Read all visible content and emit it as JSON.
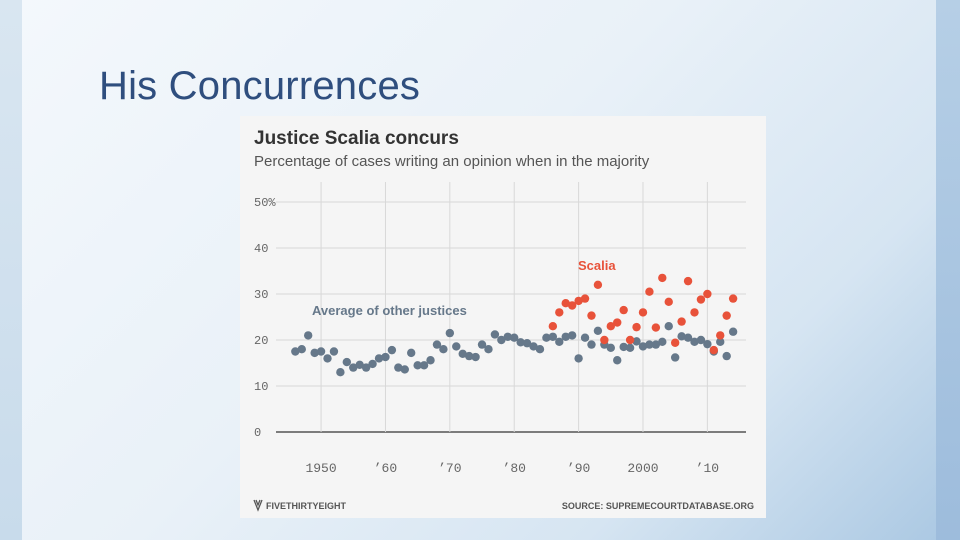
{
  "slide": {
    "title": "His Concurrences"
  },
  "chart_data": {
    "type": "scatter",
    "title": "Justice Scalia concurs",
    "subtitle": "Percentage of cases writing an opinion when in the majority",
    "xlabel": "",
    "ylabel": "",
    "xlim": [
      1943,
      2016
    ],
    "ylim": [
      0,
      50
    ],
    "grid": true,
    "y_ticks": [
      {
        "value": 50,
        "label": "50%"
      },
      {
        "value": 40,
        "label": "40"
      },
      {
        "value": 30,
        "label": "30"
      },
      {
        "value": 20,
        "label": "20"
      },
      {
        "value": 10,
        "label": "10"
      },
      {
        "value": 0,
        "label": "0"
      }
    ],
    "x_ticks": [
      {
        "value": 1950,
        "label": "1950"
      },
      {
        "value": 1960,
        "label": "’60"
      },
      {
        "value": 1970,
        "label": "’70"
      },
      {
        "value": 1980,
        "label": "’80"
      },
      {
        "value": 1990,
        "label": "’90"
      },
      {
        "value": 2000,
        "label": "2000"
      },
      {
        "value": 2010,
        "label": "’10"
      }
    ],
    "series": [
      {
        "name": "Average of other justices",
        "color": "#66788a",
        "x": [
          1946,
          1947,
          1948,
          1949,
          1950,
          1951,
          1952,
          1953,
          1954,
          1955,
          1956,
          1957,
          1958,
          1959,
          1960,
          1961,
          1962,
          1963,
          1964,
          1965,
          1966,
          1967,
          1968,
          1969,
          1970,
          1971,
          1972,
          1973,
          1974,
          1975,
          1976,
          1977,
          1978,
          1979,
          1980,
          1981,
          1982,
          1983,
          1984,
          1985,
          1986,
          1987,
          1988,
          1989,
          1990,
          1991,
          1992,
          1993,
          1994,
          1995,
          1996,
          1997,
          1998,
          1999,
          2000,
          2001,
          2002,
          2003,
          2004,
          2005,
          2006,
          2007,
          2008,
          2009,
          2010,
          2011,
          2012,
          2013,
          2014
        ],
        "values": [
          17.5,
          18,
          21,
          17.2,
          17.5,
          16,
          17.5,
          13,
          15.2,
          14,
          14.6,
          14,
          14.8,
          16,
          16.3,
          17.8,
          14,
          13.6,
          17.2,
          14.5,
          14.5,
          15.6,
          19,
          18,
          21.5,
          18.6,
          17,
          16.5,
          16.3,
          19,
          18,
          21.2,
          20,
          20.7,
          20.5,
          19.5,
          19.3,
          18.6,
          18,
          20.5,
          20.7,
          19.6,
          20.7,
          21,
          16,
          20.5,
          19,
          22,
          19,
          18.3,
          15.6,
          18.5,
          18.3,
          19.7,
          18.6,
          19,
          19,
          19.6,
          23,
          16.2,
          20.8,
          20.5,
          19.6,
          20,
          19.1,
          17.5,
          19.6,
          16.5,
          21.8
        ]
      },
      {
        "name": "Scalia",
        "color": "#e8523a",
        "x": [
          1986,
          1987,
          1988,
          1989,
          1990,
          1991,
          1992,
          1993,
          1994,
          1995,
          1996,
          1997,
          1998,
          1999,
          2000,
          2001,
          2002,
          2003,
          2004,
          2005,
          2006,
          2007,
          2008,
          2009,
          2010,
          2011,
          2012,
          2013,
          2014
        ],
        "values": [
          23,
          26,
          28,
          27.5,
          28.5,
          29,
          25.3,
          32,
          20,
          23,
          23.8,
          26.5,
          20,
          22.8,
          26,
          30.5,
          22.7,
          33.5,
          28.3,
          19.4,
          24,
          32.8,
          26,
          28.8,
          30,
          17.8,
          21,
          25.3,
          29
        ]
      }
    ],
    "annotations": [
      {
        "text": "Scalia",
        "series": "Scalia"
      },
      {
        "text": "Average of other justices",
        "series": "Average of other justices"
      }
    ],
    "footer": {
      "brand": "FIVETHIRTYEIGHT",
      "source": "SOURCE: SUPREMECOURTDATABASE.ORG"
    }
  }
}
